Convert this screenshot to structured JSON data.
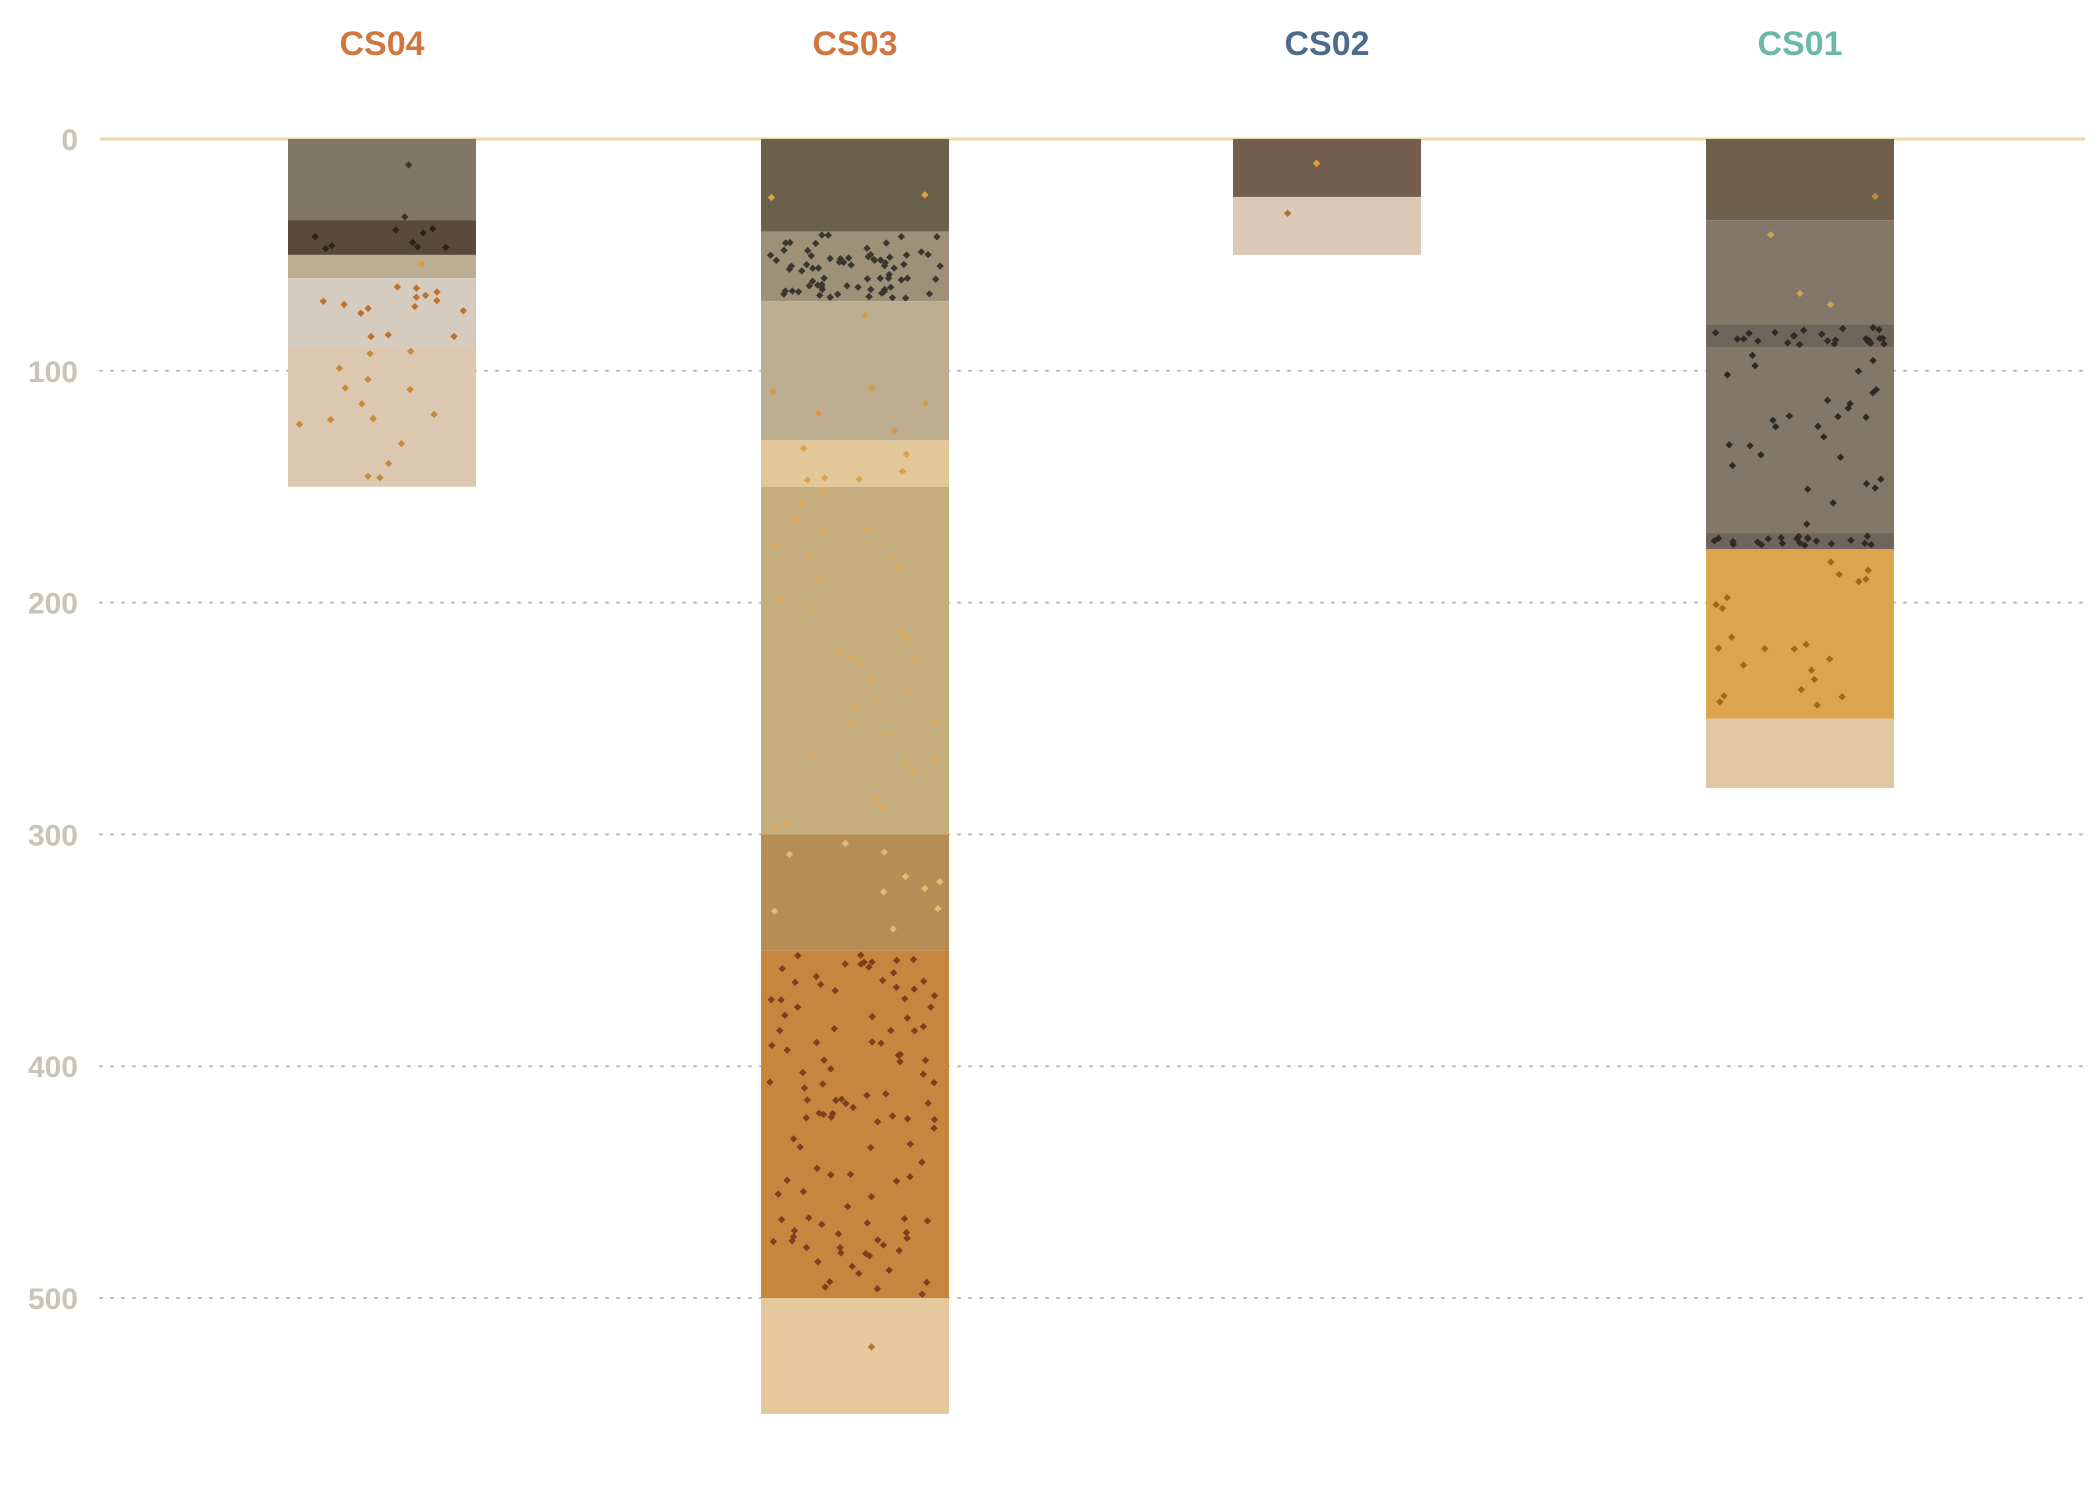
{
  "chart_data": {
    "type": "bar",
    "title": "",
    "xlabel": "",
    "ylabel": "",
    "ylim": [
      0,
      560
    ],
    "y_inverted": true,
    "yticks": [
      0,
      100,
      200,
      300,
      400,
      500
    ],
    "grid": "horizontal dotted",
    "categories": [
      "CS04",
      "CS03",
      "CS02",
      "CS01"
    ],
    "category_colors": [
      "#d0763e",
      "#d0763e",
      "#4d6b8a",
      "#6bb8a8"
    ],
    "columns": [
      {
        "name": "CS04",
        "layers": [
          {
            "top": 0,
            "bottom": 35,
            "color": "#817769",
            "speckle": "#3d342b",
            "density": 0.05
          },
          {
            "top": 35,
            "bottom": 50,
            "color": "#5a4a3a",
            "speckle": "#2b241d",
            "density": 0.6
          },
          {
            "top": 50,
            "bottom": 60,
            "color": "#bcae92",
            "speckle": "#d89c4a",
            "density": 0.1
          },
          {
            "top": 60,
            "bottom": 90,
            "color": "#d5ccbf",
            "speckle": "#c1702c",
            "density": 0.5
          },
          {
            "top": 90,
            "bottom": 150,
            "color": "#dcc8b0",
            "speckle": "#c68a3e",
            "density": 0.25
          }
        ]
      },
      {
        "name": "CS03",
        "layers": [
          {
            "top": 0,
            "bottom": 40,
            "color": "#6b604a",
            "speckle": "#e0a23e",
            "density": 0.04
          },
          {
            "top": 40,
            "bottom": 70,
            "color": "#9d9178",
            "speckle": "#3b3630",
            "density": 2.4
          },
          {
            "top": 70,
            "bottom": 130,
            "color": "#bdae92",
            "speckle": "#d69a46",
            "density": 0.1
          },
          {
            "top": 130,
            "bottom": 150,
            "color": "#e2c898",
            "speckle": "#d8a24e",
            "density": 0.3
          },
          {
            "top": 150,
            "bottom": 300,
            "color": "#c6ad7e",
            "speckle": "#deaa5c",
            "density": 0.22
          },
          {
            "top": 300,
            "bottom": 350,
            "color": "#b68d55",
            "speckle": "#e8b870",
            "density": 0.2
          },
          {
            "top": 350,
            "bottom": 500,
            "color": "#c68640",
            "speckle": "#7e3f1e",
            "density": 0.75
          },
          {
            "top": 500,
            "bottom": 550,
            "color": "#e5c79c",
            "speckle": "#b5722e",
            "density": 0.01
          }
        ]
      },
      {
        "name": "CS02",
        "layers": [
          {
            "top": 0,
            "bottom": 25,
            "color": "#745e4e",
            "speckle": "#e0a23e",
            "density": 0.03
          },
          {
            "top": 25,
            "bottom": 50,
            "color": "#dcc8b6",
            "speckle": "#b5722e",
            "density": 0.03
          }
        ]
      },
      {
        "name": "CS01",
        "layers": [
          {
            "top": 0,
            "bottom": 35,
            "color": "#6e5f4b",
            "speckle": "#c68a3e",
            "density": 0.03
          },
          {
            "top": 35,
            "bottom": 80,
            "color": "#827769",
            "speckle": "#d0a24c",
            "density": 0.06
          },
          {
            "top": 80,
            "bottom": 90,
            "color": "#6f655a",
            "speckle": "#2e2a26",
            "density": 2.5
          },
          {
            "top": 90,
            "bottom": 170,
            "color": "#827769",
            "speckle": "#2e2a26",
            "density": 0.35
          },
          {
            "top": 170,
            "bottom": 177,
            "color": "#6f655a",
            "speckle": "#2e2a26",
            "density": 3.0
          },
          {
            "top": 177,
            "bottom": 250,
            "color": "#dca44c",
            "speckle": "#a5651f",
            "density": 0.3
          },
          {
            "top": 250,
            "bottom": 280,
            "color": "#e1c7a3",
            "speckle": "#a5651f",
            "density": 0.0
          }
        ]
      }
    ]
  }
}
